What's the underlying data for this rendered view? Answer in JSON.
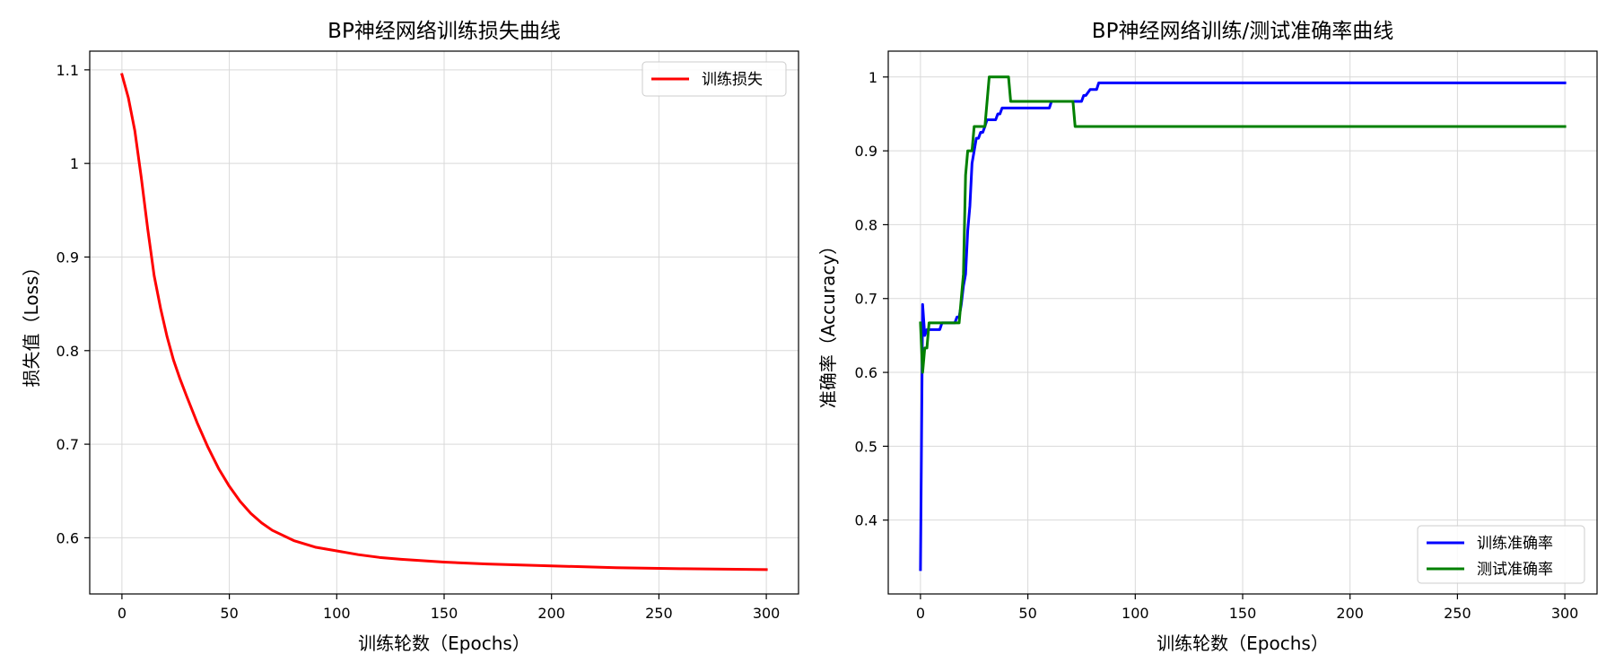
{
  "chart_data": [
    {
      "type": "line",
      "title": "BP神经网络训练损失曲线",
      "xlabel": "训练轮数（Epochs）",
      "ylabel": "损失值（Loss）",
      "xlim": [
        -15,
        315
      ],
      "ylim": [
        0.54,
        1.12
      ],
      "xticks": [
        0,
        50,
        100,
        150,
        200,
        250,
        300
      ],
      "yticks": [
        0.6,
        0.7,
        0.8,
        0.9,
        1.0,
        1.1
      ],
      "grid": true,
      "legend_position": "top-right",
      "series": [
        {
          "name": "训练损失",
          "color": "#ff0000",
          "x": [
            0,
            3,
            6,
            9,
            12,
            15,
            18,
            21,
            24,
            27,
            30,
            35,
            40,
            45,
            50,
            55,
            60,
            65,
            70,
            80,
            90,
            100,
            110,
            120,
            130,
            150,
            170,
            200,
            230,
            260,
            300
          ],
          "y": [
            1.095,
            1.07,
            1.035,
            0.985,
            0.93,
            0.88,
            0.845,
            0.815,
            0.79,
            0.77,
            0.752,
            0.723,
            0.697,
            0.674,
            0.655,
            0.639,
            0.626,
            0.616,
            0.608,
            0.597,
            0.59,
            0.586,
            0.582,
            0.579,
            0.577,
            0.574,
            0.572,
            0.57,
            0.568,
            0.567,
            0.566
          ]
        }
      ]
    },
    {
      "type": "line",
      "title": "BP神经网络训练/测试准确率曲线",
      "xlabel": "训练轮数（Epochs）",
      "ylabel": "准确率（Accuracy）",
      "xlim": [
        -15,
        315
      ],
      "ylim": [
        0.3,
        1.035
      ],
      "xticks": [
        0,
        50,
        100,
        150,
        200,
        250,
        300
      ],
      "yticks": [
        0.4,
        0.5,
        0.6,
        0.7,
        0.8,
        0.9,
        1.0
      ],
      "grid": true,
      "legend_position": "bottom-right",
      "series": [
        {
          "name": "训练准确率",
          "color": "#0000ff",
          "x": [
            0,
            1,
            2,
            3,
            5,
            9,
            10,
            16,
            17,
            18,
            19,
            20,
            21,
            22,
            23,
            24,
            25,
            26,
            27,
            28,
            29,
            30,
            31,
            32,
            33,
            35,
            36,
            37,
            38,
            40,
            60,
            61,
            75,
            76,
            77,
            79,
            80,
            82,
            83,
            300
          ],
          "y": [
            0.333,
            0.692,
            0.65,
            0.658,
            0.658,
            0.658,
            0.667,
            0.667,
            0.675,
            0.675,
            0.692,
            0.717,
            0.733,
            0.792,
            0.825,
            0.883,
            0.9,
            0.917,
            0.917,
            0.925,
            0.925,
            0.933,
            0.942,
            0.942,
            0.942,
            0.942,
            0.95,
            0.95,
            0.958,
            0.958,
            0.958,
            0.967,
            0.967,
            0.975,
            0.975,
            0.983,
            0.983,
            0.983,
            0.992,
            0.992
          ]
        },
        {
          "name": "测试准确率",
          "color": "#008000",
          "x": [
            0,
            1,
            2,
            3,
            4,
            5,
            18,
            19,
            20,
            21,
            22,
            23,
            24,
            25,
            26,
            30,
            32,
            33,
            40,
            41,
            42,
            70,
            71,
            72,
            300
          ],
          "y": [
            0.667,
            0.6,
            0.633,
            0.633,
            0.667,
            0.667,
            0.667,
            0.7,
            0.733,
            0.867,
            0.9,
            0.9,
            0.9,
            0.933,
            0.933,
            0.933,
            1.0,
            1.0,
            1.0,
            1.0,
            0.967,
            0.967,
            0.967,
            0.933,
            0.933
          ]
        }
      ]
    }
  ]
}
